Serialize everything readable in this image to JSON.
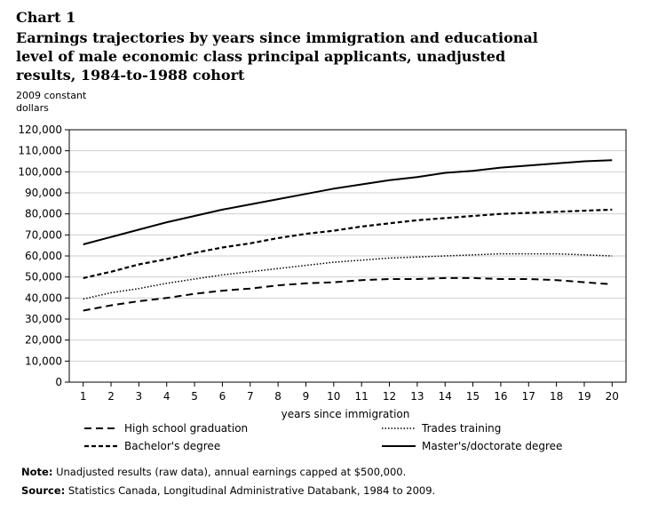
{
  "chart_label": "Chart 1",
  "title": "Earnings trajectories by years since immigration and educational level of male economic class principal applicants, unadjusted results, 1984-to-1988 cohort",
  "footer": {
    "note_label": "Note:",
    "note_text": " Unadjusted results (raw data), annual earnings capped at $500,000.",
    "source_label": "Source:",
    "source_text": " Statistics Canada, Longitudinal Administrative Databank, 1984 to 2009."
  },
  "chart_data": {
    "type": "line",
    "title": "Earnings trajectories by years since immigration and educational level of male economic class principal applicants, unadjusted results, 1984-to-1988 cohort",
    "xlabel": "years since immigration",
    "ylabel": "2009 constant dollars",
    "x": [
      1,
      2,
      3,
      4,
      5,
      6,
      7,
      8,
      9,
      10,
      11,
      12,
      13,
      14,
      15,
      16,
      17,
      18,
      19,
      20
    ],
    "xlim": [
      0.5,
      20.5
    ],
    "ylim": [
      0,
      120000
    ],
    "yticks": [
      0,
      10000,
      20000,
      30000,
      40000,
      50000,
      60000,
      70000,
      80000,
      90000,
      100000,
      110000,
      120000
    ],
    "ytick_labels": [
      "0",
      "10,000",
      "20,000",
      "30,000",
      "40,000",
      "50,000",
      "60,000",
      "70,000",
      "80,000",
      "90,000",
      "100,000",
      "110,000",
      "120,000"
    ],
    "grid": true,
    "legend_position": "bottom",
    "series": [
      {
        "name": "High school graduation",
        "style": "dashed",
        "color": "#000000",
        "values": [
          34000,
          36500,
          38500,
          40000,
          42000,
          43500,
          44500,
          46000,
          47000,
          47500,
          48500,
          49000,
          49000,
          49500,
          49500,
          49000,
          49000,
          48500,
          47500,
          46500
        ]
      },
      {
        "name": "Trades training",
        "style": "dotted",
        "color": "#000000",
        "values": [
          39500,
          42500,
          44500,
          47000,
          49000,
          51000,
          52500,
          54000,
          55500,
          57000,
          58000,
          59000,
          59500,
          60000,
          60500,
          61000,
          61000,
          61000,
          60500,
          60000
        ]
      },
      {
        "name": "Bachelor's degree",
        "style": "short-dashed",
        "color": "#000000",
        "values": [
          49500,
          52500,
          56000,
          58500,
          61500,
          64000,
          66000,
          68500,
          70500,
          72000,
          74000,
          75500,
          77000,
          78000,
          79000,
          80000,
          80500,
          81000,
          81500,
          82000
        ]
      },
      {
        "name": "Master's/doctorate degree",
        "style": "solid",
        "color": "#000000",
        "values": [
          65500,
          69000,
          72500,
          76000,
          79000,
          82000,
          84500,
          87000,
          89500,
          92000,
          94000,
          96000,
          97500,
          99500,
          100500,
          102000,
          103000,
          104000,
          105000,
          105500
        ]
      }
    ]
  }
}
